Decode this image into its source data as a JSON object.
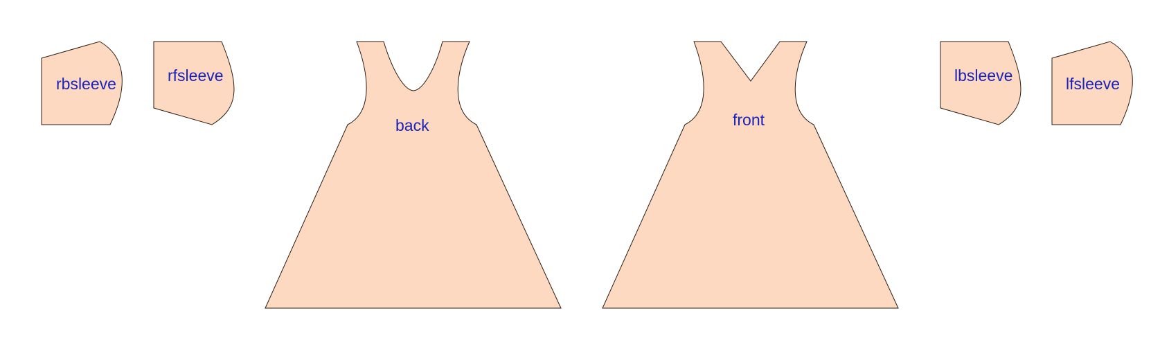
{
  "colors": {
    "background": "#ffffff",
    "piece_fill": "#fdd9c1",
    "piece_stroke": "#2a1c12",
    "label": "#1a22b8"
  },
  "pieces": {
    "rbsleeve": {
      "label": "rbsleeve"
    },
    "rfsleeve": {
      "label": "rfsleeve"
    },
    "back": {
      "label": "back"
    },
    "front": {
      "label": "front"
    },
    "lbsleeve": {
      "label": "lbsleeve"
    },
    "lfsleeve": {
      "label": "lfsleeve"
    }
  }
}
